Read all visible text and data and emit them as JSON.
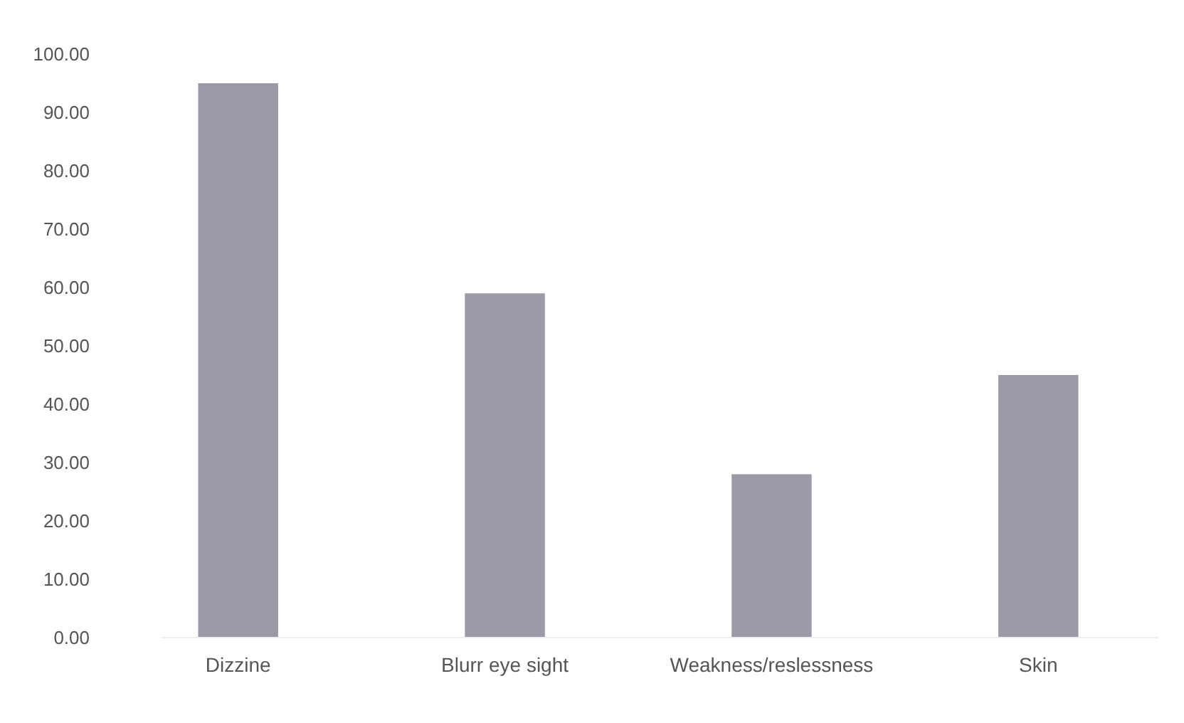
{
  "chart_data": {
    "type": "bar",
    "categories": [
      "Dizzine",
      "Blurr eye sight",
      "Weakness/reslessness",
      "Skin"
    ],
    "values": [
      95,
      59,
      28,
      45
    ],
    "color": "#9b9ba8",
    "ylim": [
      0,
      100
    ],
    "yticks": [
      {
        "value": 0,
        "label": "0.00"
      },
      {
        "value": 10,
        "label": "10.00"
      },
      {
        "value": 20,
        "label": "20.00"
      },
      {
        "value": 30,
        "label": "30.00"
      },
      {
        "value": 40,
        "label": "40.00"
      },
      {
        "value": 50,
        "label": "50.00"
      },
      {
        "value": 60,
        "label": "60.00"
      },
      {
        "value": 70,
        "label": "70.00"
      },
      {
        "value": 80,
        "label": "80.00"
      },
      {
        "value": 90,
        "label": "90.00"
      },
      {
        "value": 100,
        "label": "100.00"
      }
    ],
    "grid": false
  }
}
